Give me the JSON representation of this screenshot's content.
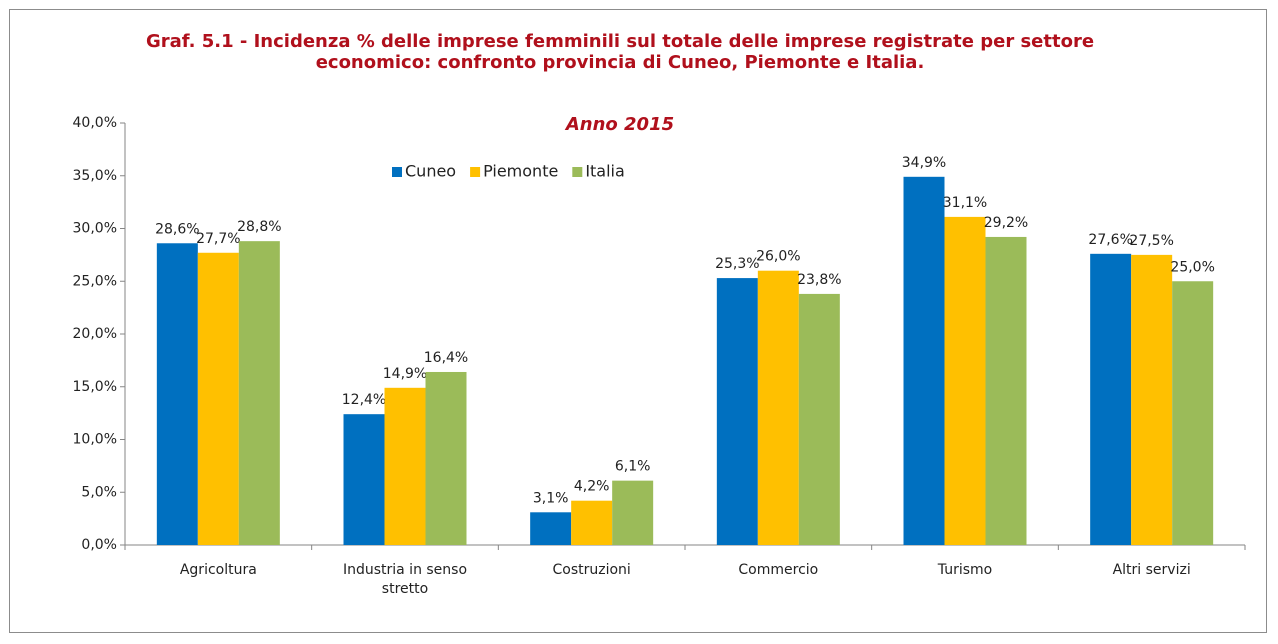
{
  "chart_data": {
    "type": "bar",
    "title": "Graf. 5.1 - Incidenza % delle imprese femminili sul totale delle imprese registrate per settore economico: confronto provincia di Cuneo, Piemonte e Italia.",
    "subtitle": "Anno 2015",
    "categories": [
      "Agricoltura",
      "Industria in senso stretto",
      "Costruzioni",
      "Commercio",
      "Turismo",
      "Altri servizi"
    ],
    "series": [
      {
        "name": "Cuneo",
        "color": "#0070c0",
        "values": [
          28.6,
          12.4,
          3.1,
          25.3,
          34.9,
          27.6
        ],
        "value_labels": [
          "28,6%",
          "12,4%",
          "3,1%",
          "25,3%",
          "34,9%",
          "27,6%"
        ]
      },
      {
        "name": "Piemonte",
        "color": "#ffc000",
        "values": [
          27.7,
          14.9,
          4.2,
          26.0,
          31.1,
          27.5
        ],
        "value_labels": [
          "27,7%",
          "14,9%",
          "4,2%",
          "26,0%",
          "31,1%",
          "27,5%"
        ]
      },
      {
        "name": "Italia",
        "color": "#9bbb59",
        "values": [
          28.8,
          16.4,
          6.1,
          23.8,
          29.2,
          25.0
        ],
        "value_labels": [
          "28,8%",
          "16,4%",
          "6,1%",
          "23,8%",
          "29,2%",
          "25,0%"
        ]
      }
    ],
    "ylim": [
      0,
      40
    ],
    "yticks": [
      {
        "value": 0,
        "label": "0,0%"
      },
      {
        "value": 5,
        "label": "5,0%"
      },
      {
        "value": 10,
        "label": "10,0%"
      },
      {
        "value": 15,
        "label": "15,0%"
      },
      {
        "value": 20,
        "label": "20,0%"
      },
      {
        "value": 25,
        "label": "25,0%"
      },
      {
        "value": 30,
        "label": "30,0%"
      },
      {
        "value": 35,
        "label": "35,0%"
      },
      {
        "value": 40,
        "label": "40,0%"
      }
    ],
    "grid": false,
    "legend": "top"
  }
}
